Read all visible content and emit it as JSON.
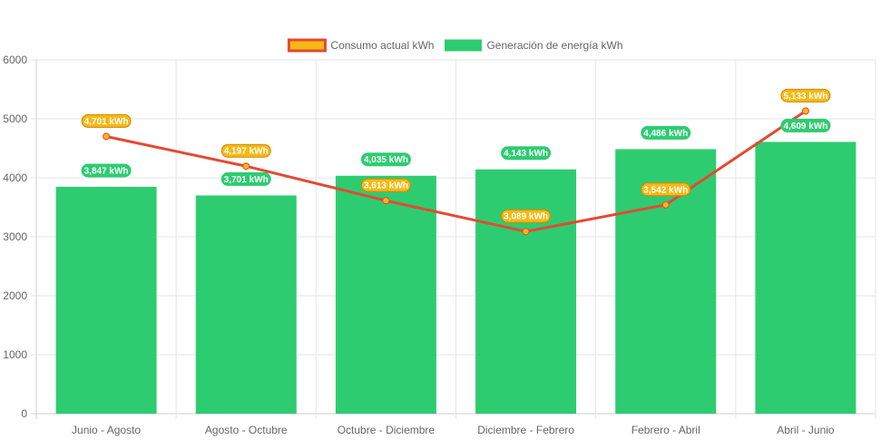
{
  "chart_data": {
    "type": "bar",
    "categories": [
      "Junio - Agosto",
      "Agosto - Octubre",
      "Octubre - Diciembre",
      "Diciembre - Febrero",
      "Febrero - Abril",
      "Abril - Junio"
    ],
    "series": [
      {
        "name": "Consumo actual kWh",
        "type": "line",
        "values": [
          4701,
          4197,
          3613,
          3089,
          3542,
          5133
        ],
        "labels": [
          "4,701 kWh",
          "4,197 kWh",
          "3,613 kWh",
          "3,089 kWh",
          "3,542 kWh",
          "5,133 kWh"
        ],
        "color": "#e34a33",
        "point_color": "#f5b913"
      },
      {
        "name": "Generación de energía kWh",
        "type": "bar",
        "values": [
          3847,
          3701,
          4035,
          4143,
          4486,
          4609
        ],
        "labels": [
          "3,847 kWh",
          "3,701 kWh",
          "4,035 kWh",
          "4,143 kWh",
          "4,486 kWh",
          "4,609 kWh"
        ],
        "color": "#2ecc71"
      }
    ],
    "y_ticks": [
      "0",
      "1000",
      "2000",
      "3000",
      "4000",
      "5000",
      "6000"
    ],
    "ylim": [
      0,
      6000
    ],
    "grid": true,
    "legend_position": "top-center",
    "title": "",
    "xlabel": "",
    "ylabel": ""
  }
}
